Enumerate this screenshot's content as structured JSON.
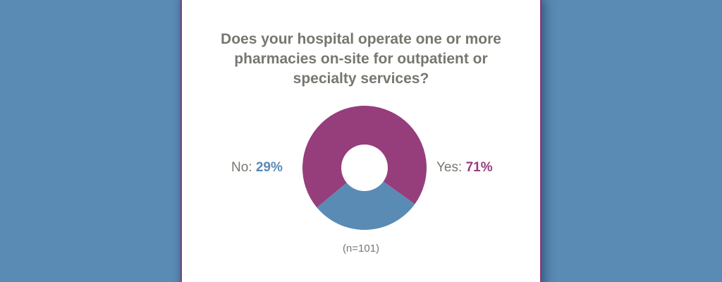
{
  "colors": {
    "background": "#5a8bb5",
    "text": "#77776f",
    "no": "#5a8bb5",
    "yes": "#963d7c"
  },
  "chart_data": {
    "type": "pie",
    "title_lines": [
      "Does your hospital operate one or more",
      "pharmacies on-site for outpatient or",
      "specialty services?"
    ],
    "labels": [
      "No",
      "Yes"
    ],
    "values": [
      29,
      71
    ],
    "value_labels": [
      "29%",
      "71%"
    ],
    "colors": [
      "#5a8bb5",
      "#963d7c"
    ],
    "donut": true,
    "note": "(n=101)"
  },
  "legend": {
    "no_key": "No:",
    "no_value": "29%",
    "yes_key": "Yes:",
    "yes_value": "71%"
  }
}
